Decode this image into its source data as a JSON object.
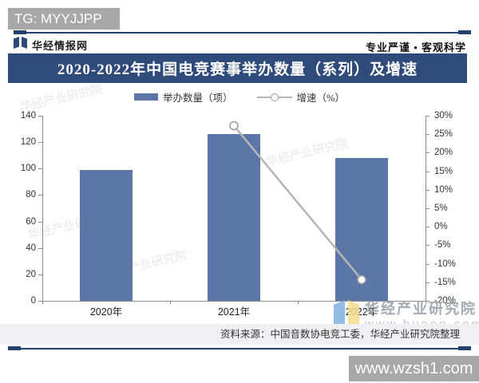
{
  "overlay": {
    "tg_badge": "TG: MYYJJPP",
    "site_badge": "www.wzsh1.com"
  },
  "header": {
    "brand": "华经情报网",
    "slogan": "专业严谨 • 客观科学"
  },
  "title": "2020-2022年中国电竞赛事举办数量（系列）及增速",
  "legend": {
    "bar_label": "举办数量（项）",
    "line_label": "增速（%）"
  },
  "watermark": {
    "diagonal": "华经产业研究院",
    "brand": "华经产业研究院",
    "url": "www.huaon.com"
  },
  "footer": {
    "source": "资料来源：中国音数协电竞工委，华经产业研究院整理"
  },
  "colors": {
    "navy": "#2e4b7c",
    "bar": "#5b76a7",
    "line": "#b5b5b5",
    "marker_stroke": "#9e9e9e",
    "axis": "#8c8c8c",
    "badge_gray": "#a8a8a8",
    "source_band": "#eef0f3"
  },
  "chart_data": {
    "type": "bar",
    "title": "2020-2022年中国电竞赛事举办数量（系列）及增速",
    "categories": [
      "2020年",
      "2021年",
      "2022年"
    ],
    "series": [
      {
        "name": "举办数量（项）",
        "type": "bar",
        "axis": "left",
        "values": [
          99,
          126,
          108
        ]
      },
      {
        "name": "增速（%）",
        "type": "line",
        "axis": "right",
        "values": [
          null,
          27.3,
          -14.3
        ]
      }
    ],
    "y_left": {
      "min": 0,
      "max": 140,
      "ticks": [
        0,
        20,
        40,
        60,
        80,
        100,
        120,
        140
      ]
    },
    "y_right": {
      "min": -20,
      "max": 30,
      "suffix": "%",
      "ticks": [
        30,
        25,
        20,
        15,
        10,
        5,
        0,
        -5,
        -10,
        -15,
        -20
      ]
    },
    "grid": false,
    "legend_position": "top",
    "source": "资料来源：中国音数协电竞工委，华经产业研究院整理"
  }
}
